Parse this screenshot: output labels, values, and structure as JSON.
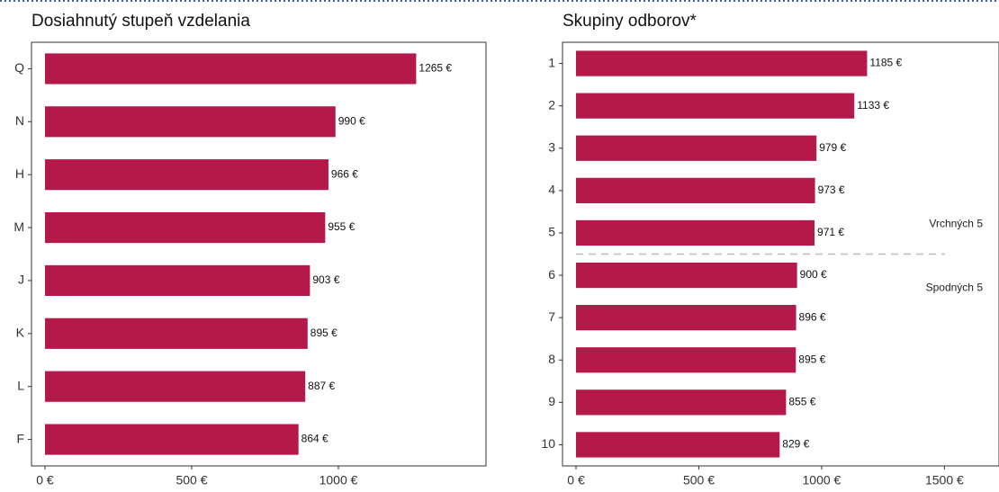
{
  "chart_data": [
    {
      "type": "bar",
      "orientation": "horizontal",
      "title": "Dosiahnutý stupeň vzdelania",
      "categories": [
        "Q",
        "N",
        "H",
        "M",
        "J",
        "K",
        "L",
        "F"
      ],
      "values": [
        1265,
        990,
        966,
        955,
        903,
        895,
        887,
        864
      ],
      "value_labels": [
        "1265 €",
        "990 €",
        "966 €",
        "955 €",
        "903 €",
        "895 €",
        "887 €",
        "864 €"
      ],
      "color": "#b5194a",
      "xlim": [
        -46,
        1503
      ],
      "xticks": [
        {
          "value": 0,
          "label": "0 €"
        },
        {
          "value": 500,
          "label": "500 €"
        },
        {
          "value": 1000,
          "label": "1000 €"
        }
      ]
    },
    {
      "type": "bar",
      "orientation": "horizontal",
      "title": "Skupiny odborov*",
      "categories": [
        "1",
        "2",
        "3",
        "4",
        "5",
        "6",
        "7",
        "8",
        "9",
        "10"
      ],
      "values": [
        1185,
        1133,
        979,
        973,
        971,
        900,
        896,
        895,
        855,
        829
      ],
      "value_labels": [
        "1185 €",
        "1133 €",
        "979 €",
        "973 €",
        "971 €",
        "900 €",
        "896 €",
        "895 €",
        "855 €",
        "829 €"
      ],
      "color": "#b5194a",
      "xlim": [
        -55,
        1722
      ],
      "xticks": [
        {
          "value": 0,
          "label": "0 €"
        },
        {
          "value": 500,
          "label": "500 €"
        },
        {
          "value": 1000,
          "label": "1000 €"
        },
        {
          "value": 1500,
          "label": "1500 €"
        }
      ],
      "annotations": [
        "Vrchných 5",
        "Spodných 5"
      ]
    }
  ]
}
